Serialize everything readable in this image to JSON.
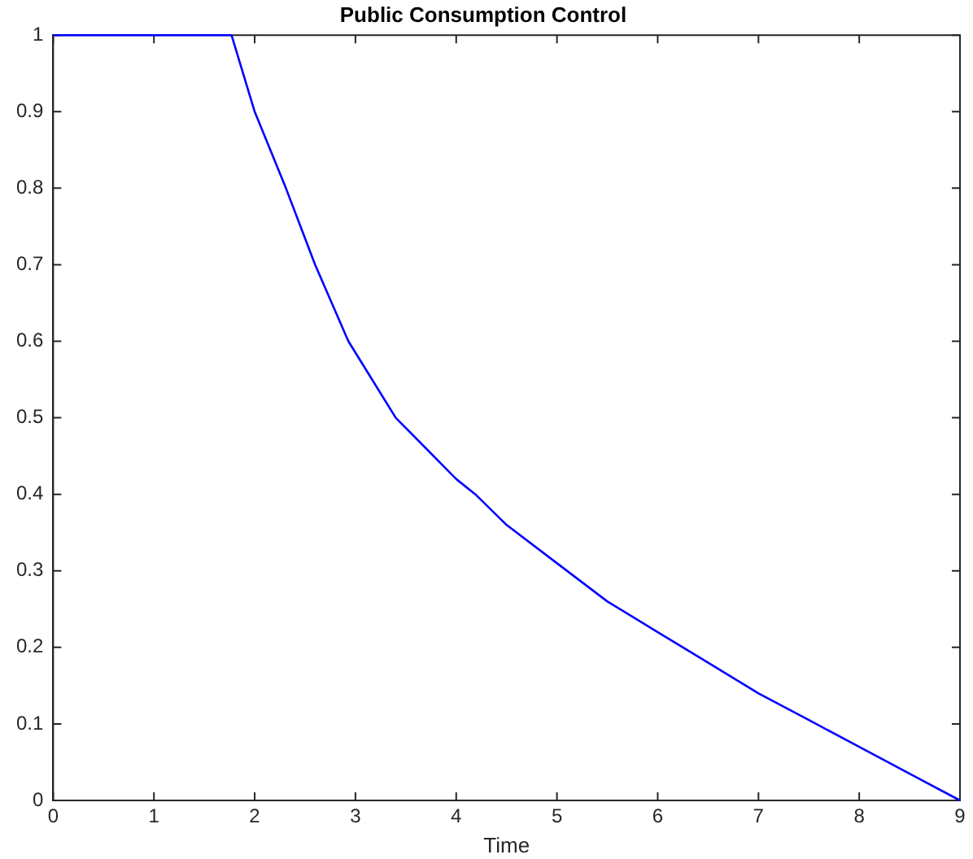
{
  "chart_data": {
    "type": "line",
    "title": "Public Consumption Control",
    "xlabel": "Time",
    "x": [
      0,
      0.5,
      1,
      1.5,
      1.77,
      2.0,
      2.31,
      2.6,
      2.93,
      3.4,
      4.0,
      4.19,
      4.5,
      5,
      5.5,
      6,
      6.5,
      7,
      7.5,
      8,
      8.5,
      9
    ],
    "series": [
      {
        "color": "#0000ff",
        "values": [
          1,
          1,
          1,
          1,
          1,
          0.9,
          0.8,
          0.7,
          0.6,
          0.5,
          0.42,
          0.4,
          0.36,
          0.31,
          0.26,
          0.22,
          0.18,
          0.14,
          0.105,
          0.07,
          0.035,
          0
        ]
      }
    ],
    "xlim": [
      0,
      9
    ],
    "xticks": [
      0,
      1,
      2,
      3,
      4,
      5,
      6,
      7,
      8,
      9
    ],
    "ylim": [
      0,
      1
    ],
    "yticks": [
      0,
      0.1,
      0.2,
      0.3,
      0.4,
      0.5,
      0.6,
      0.7,
      0.8,
      0.9,
      1
    ],
    "grid": false,
    "legend": false,
    "marker": "none",
    "line_style": "solid"
  }
}
